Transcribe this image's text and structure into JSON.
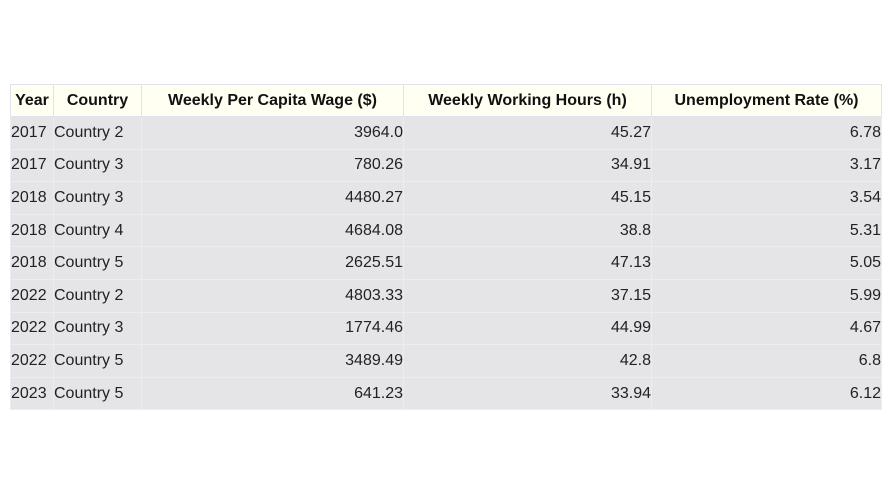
{
  "chart_data": {
    "type": "table",
    "columns": [
      "Year",
      "Country",
      "Weekly Per Capita Wage ($)",
      "Weekly Working Hours (h)",
      "Unemployment Rate (%)"
    ],
    "rows": [
      [
        "2017",
        "Country 2",
        "3964.0",
        "45.27",
        "6.78"
      ],
      [
        "2017",
        "Country 3",
        "780.26",
        "34.91",
        "3.17"
      ],
      [
        "2018",
        "Country 3",
        "4480.27",
        "45.15",
        "3.54"
      ],
      [
        "2018",
        "Country 4",
        "4684.08",
        "38.8",
        "5.31"
      ],
      [
        "2018",
        "Country 5",
        "2625.51",
        "47.13",
        "5.05"
      ],
      [
        "2022",
        "Country 2",
        "4803.33",
        "37.15",
        "5.99"
      ],
      [
        "2022",
        "Country 3",
        "1774.46",
        "44.99",
        "4.67"
      ],
      [
        "2022",
        "Country 5",
        "3489.49",
        "42.8",
        "6.8"
      ],
      [
        "2023",
        "Country 5",
        "641.23",
        "33.94",
        "6.12"
      ]
    ]
  },
  "colors": {
    "header_bg": "#fffff2",
    "cell_bg": "#e5e5e8",
    "text": "#222222"
  }
}
